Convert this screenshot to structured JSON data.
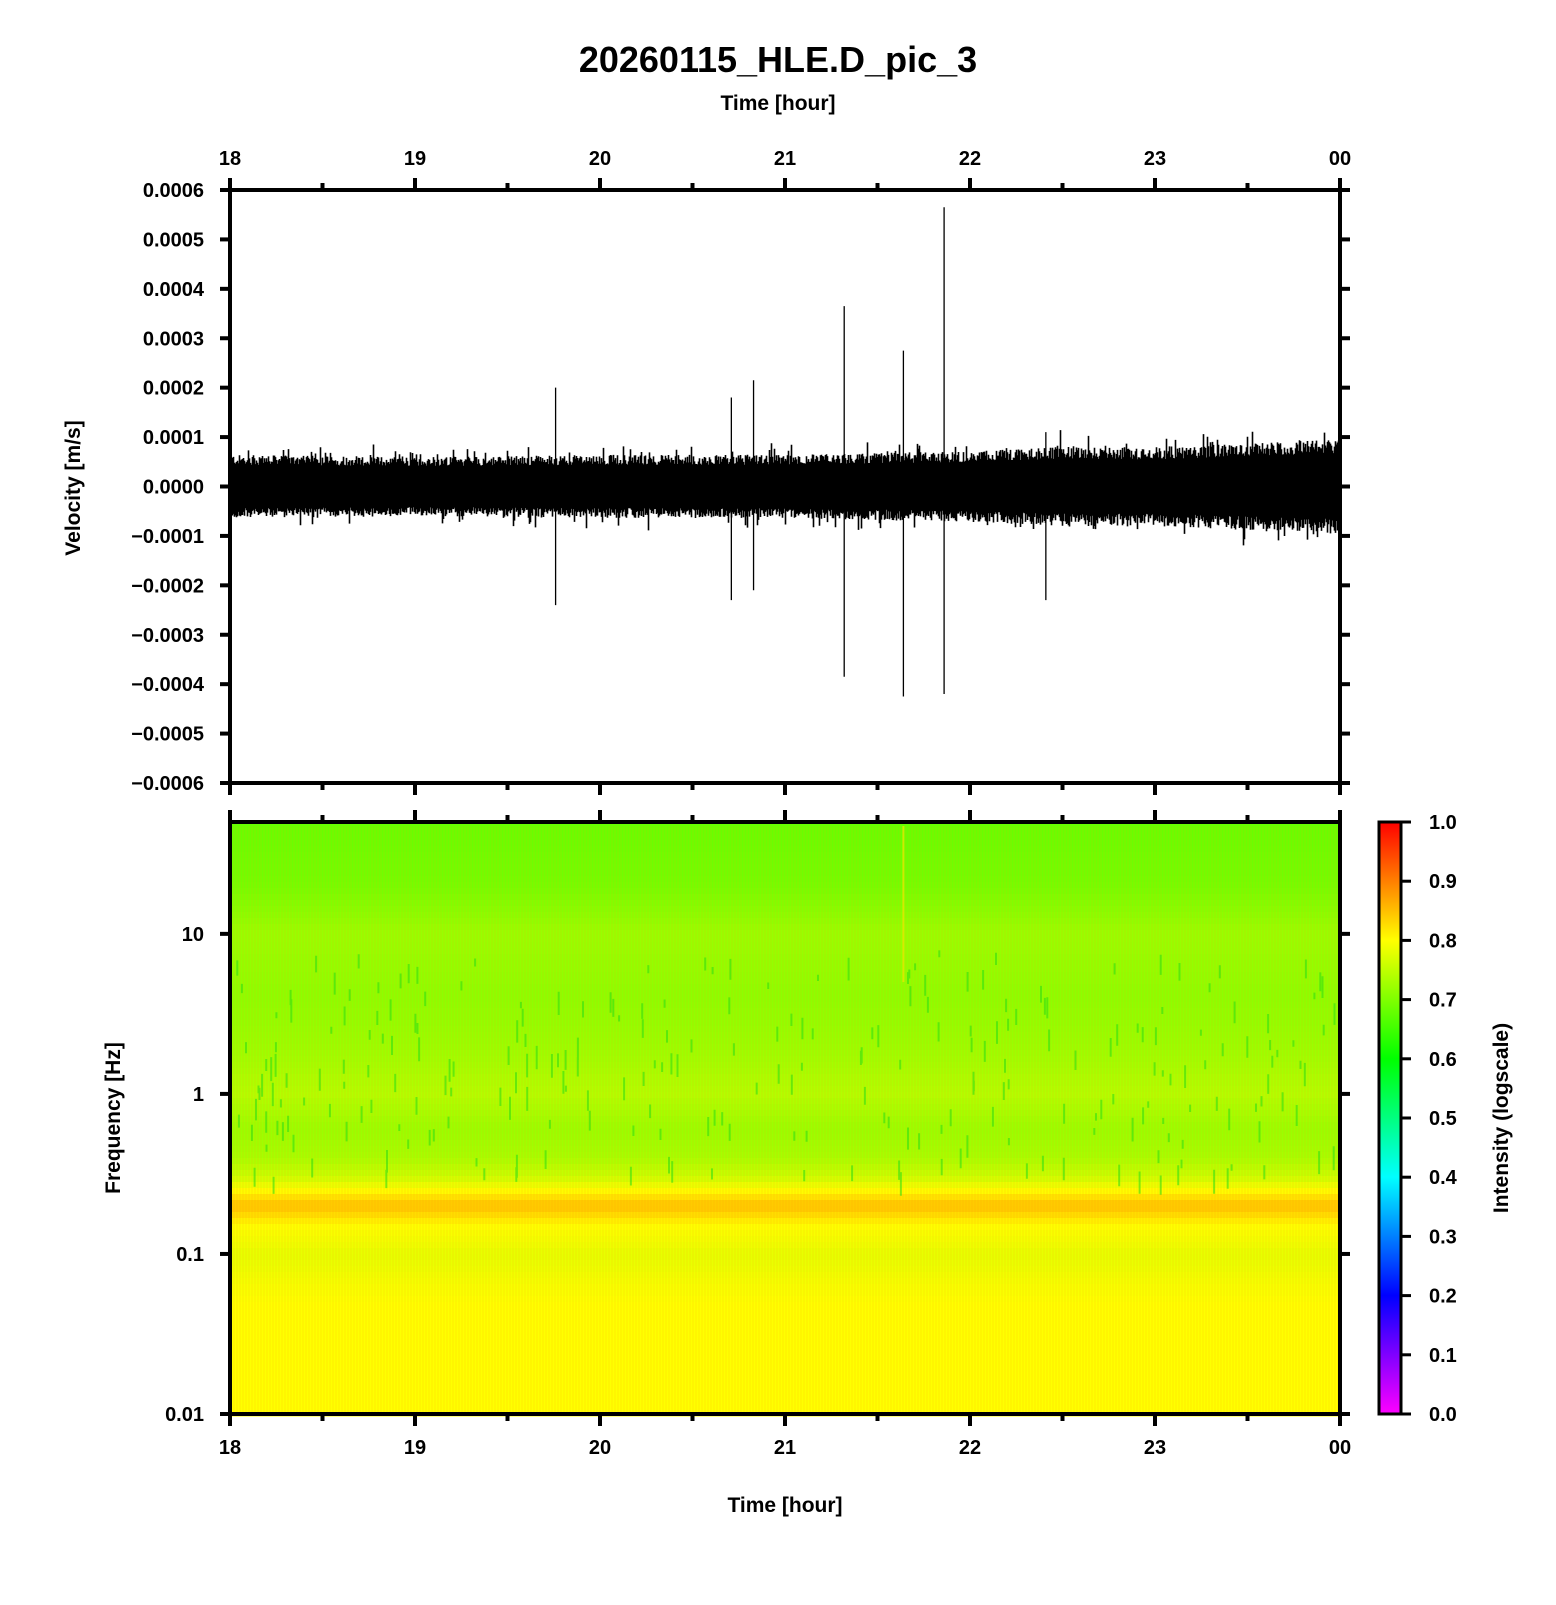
{
  "title": "20260115_HLE.D_pic_3",
  "top_xlabel": "Time [hour]",
  "bottom_xlabel": "Time [hour]",
  "colors": {
    "trace": "#000000",
    "axes": "#000000",
    "colormap": [
      "#ff00ff",
      "#0000ff",
      "#00ffff",
      "#00ff00",
      "#ffff00",
      "#ff0000"
    ]
  },
  "chart_data": [
    {
      "type": "line",
      "name": "seismogram",
      "ylabel": "Velocity [m/s]",
      "x_ticks": [
        "18",
        "19",
        "20",
        "21",
        "22",
        "23",
        "00"
      ],
      "xlim_hours": [
        18,
        24
      ],
      "ylim": [
        -0.0006,
        0.0006
      ],
      "y_ticks": [
        "0.0006",
        "0.0005",
        "0.0004",
        "0.0003",
        "0.0002",
        "0.0001",
        "0.0000",
        "−0.0001",
        "−0.0002",
        "−0.0003",
        "−0.0004",
        "−0.0005",
        "−0.0006"
      ],
      "y_tick_values": [
        0.0006,
        0.0005,
        0.0004,
        0.0003,
        0.0002,
        0.0001,
        0,
        -0.0001,
        -0.0002,
        -0.0003,
        -0.0004,
        -0.0005,
        -0.0006
      ],
      "noise_envelope": {
        "x": [
          18.0,
          19.0,
          20.0,
          21.0,
          22.0,
          22.5,
          23.0,
          23.5,
          24.0
        ],
        "amplitude": [
          8e-05,
          7.5e-05,
          8e-05,
          8e-05,
          9e-05,
          0.0001,
          0.0001,
          0.00011,
          0.00012
        ]
      },
      "spikes": [
        {
          "x": 19.76,
          "max": 0.0002,
          "min": -0.00024
        },
        {
          "x": 20.71,
          "max": 0.00018,
          "min": -0.00023
        },
        {
          "x": 20.83,
          "max": 0.000215,
          "min": -0.00021
        },
        {
          "x": 21.32,
          "max": 0.000365,
          "min": -0.000385
        },
        {
          "x": 21.64,
          "max": 0.000275,
          "min": -0.000425
        },
        {
          "x": 21.86,
          "max": 0.000565,
          "min": -0.00042
        },
        {
          "x": 22.41,
          "max": 0.00011,
          "min": -0.00023
        }
      ]
    },
    {
      "type": "heatmap",
      "name": "spectrogram",
      "ylabel": "Frequency [Hz]",
      "xlabel": "Time [hour]",
      "x_ticks": [
        "18",
        "19",
        "20",
        "21",
        "22",
        "23",
        "00"
      ],
      "xlim_hours": [
        18,
        24
      ],
      "y_scale": "log",
      "ylim": [
        0.01,
        50
      ],
      "y_ticks": [
        "10",
        "1",
        "0.1",
        "0.01"
      ],
      "y_tick_values": [
        10,
        1,
        0.1,
        0.01
      ],
      "intensity_profile": {
        "freq": [
          50,
          20,
          10,
          4,
          2,
          1,
          0.6,
          0.4,
          0.3,
          0.25,
          0.2,
          0.15,
          0.1,
          0.05,
          0.01
        ],
        "intensity": [
          0.68,
          0.69,
          0.72,
          0.71,
          0.72,
          0.74,
          0.72,
          0.73,
          0.76,
          0.8,
          0.85,
          0.8,
          0.78,
          0.8,
          0.8
        ]
      },
      "colorbar": {
        "label": "Intensity (logscale)",
        "ticks": [
          "1.0",
          "0.9",
          "0.8",
          "0.7",
          "0.6",
          "0.5",
          "0.4",
          "0.3",
          "0.2",
          "0.1",
          "0.0"
        ],
        "tick_values": [
          1.0,
          0.9,
          0.8,
          0.7,
          0.6,
          0.5,
          0.4,
          0.3,
          0.2,
          0.1,
          0.0
        ],
        "range": [
          0,
          1
        ]
      }
    }
  ]
}
